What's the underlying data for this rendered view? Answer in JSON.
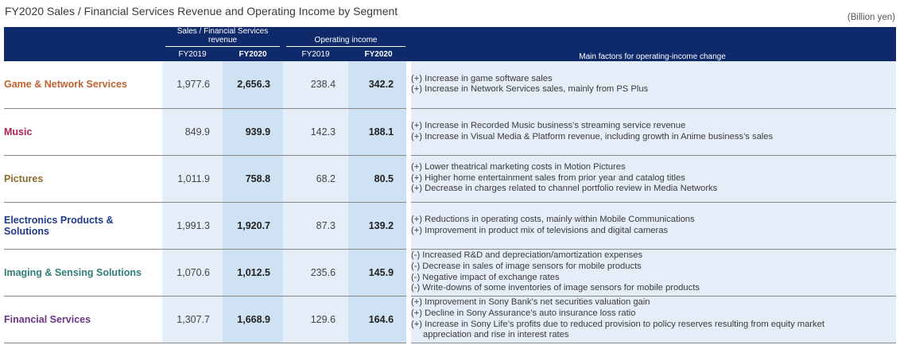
{
  "title": "FY2020 Sales / Financial Services Revenue and Operating Income by Segment",
  "unit": "(Billion yen)",
  "header": {
    "sales_group": "Sales / Financial Services revenue",
    "oi_group": "Operating income",
    "fy2019": "FY2019",
    "fy2020": "FY2020",
    "factors": "Main factors for operating-income change"
  },
  "colors": {
    "header_bg": "#0e2a6b",
    "game": "#c0622f",
    "music": "#b2234f",
    "pictures": "#8b6d2b",
    "electronics": "#1f3a88",
    "imaging": "#2f7f74",
    "financial": "#6b3584"
  },
  "rows": [
    {
      "segment": "Game & Network Services",
      "sales_fy2019": "1,977.6",
      "sales_fy2020": "2,656.3",
      "oi_fy2019": "238.4",
      "oi_fy2020": "342.2",
      "factors": [
        "(+) Increase in game software sales",
        "(+) Increase in Network Services sales, mainly from PS Plus"
      ]
    },
    {
      "segment": "Music",
      "sales_fy2019": "849.9",
      "sales_fy2020": "939.9",
      "oi_fy2019": "142.3",
      "oi_fy2020": "188.1",
      "factors": [
        "(+) Increase in Recorded Music business’s streaming service revenue",
        "(+) Increase in Visual Media & Platform revenue, including growth in Anime business’s sales"
      ]
    },
    {
      "segment": "Pictures",
      "sales_fy2019": "1,011.9",
      "sales_fy2020": "758.8",
      "oi_fy2019": "68.2",
      "oi_fy2020": "80.5",
      "factors": [
        "(+) Lower theatrical marketing costs in Motion Pictures",
        "(+) Higher home entertainment sales from prior year and catalog titles",
        "(+) Decrease in charges related to channel portfolio review in Media Networks"
      ]
    },
    {
      "segment_line1": "Electronics Products &",
      "segment_line2": "Solutions",
      "sales_fy2019": "1,991.3",
      "sales_fy2020": "1,920.7",
      "oi_fy2019": "87.3",
      "oi_fy2020": "139.2",
      "factors": [
        "(+) Reductions in operating costs, mainly within Mobile Communications",
        "(+) Improvement in product mix of televisions and digital cameras"
      ]
    },
    {
      "segment": "Imaging & Sensing Solutions",
      "sales_fy2019": "1,070.6",
      "sales_fy2020": "1,012.5",
      "oi_fy2019": "235.6",
      "oi_fy2020": "145.9",
      "factors": [
        "(-) Increased R&D and depreciation/amortization expenses",
        "(-) Decrease in sales of image sensors for mobile products",
        "(-) Negative impact of exchange rates",
        "(-) Write-downs of some inventories of image sensors for mobile products"
      ]
    },
    {
      "segment": "Financial Services",
      "sales_fy2019": "1,307.7",
      "sales_fy2020": "1,668.9",
      "oi_fy2019": "129.6",
      "oi_fy2020": "164.6",
      "factors": [
        "(+) Improvement in Sony Bank’s net securities valuation gain",
        "(+) Decline in Sony Assurance’s auto insurance loss ratio",
        "(+) Increase in Sony Life’s profits due to reduced provision to policy reserves resulting from equity market",
        "appreciation and rise in interest rates"
      ]
    }
  ]
}
